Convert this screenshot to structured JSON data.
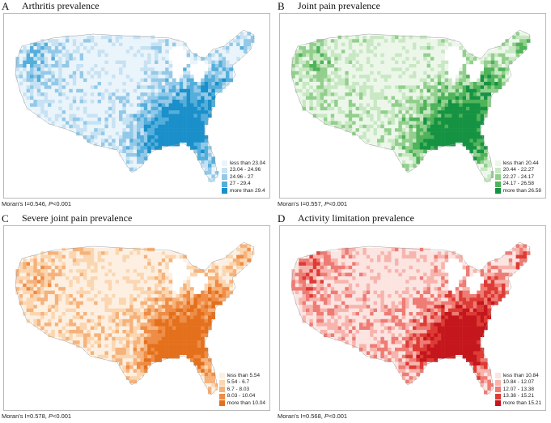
{
  "panels": [
    {
      "letter": "A",
      "title": "Arthritis prevalence",
      "stat_prefix": "Moran's I=0.546, ",
      "stat_p": "P",
      "stat_suffix": "<0.001",
      "colors": [
        "#eaf4fb",
        "#c6e2f3",
        "#93c9e8",
        "#54aedb",
        "#1a8fca"
      ],
      "legend": [
        "less than 23.04",
        "23.04 - 24.96",
        "24.96 - 27",
        "27 - 29.4",
        "more than 29.4"
      ]
    },
    {
      "letter": "B",
      "title": "Joint pain prevalence",
      "stat_prefix": "Moran's I=0.557, ",
      "stat_p": "P",
      "stat_suffix": "<0.001",
      "colors": [
        "#ecf7ea",
        "#c8e8c3",
        "#92cf8d",
        "#4fb35a",
        "#159343"
      ],
      "legend": [
        "less than 20.44",
        "20.44 - 22.27",
        "22.27 - 24.17",
        "24.17 - 26.58",
        "more than 26.58"
      ]
    },
    {
      "letter": "C",
      "title": "Severe joint pain prevalence",
      "stat_prefix": "Moran's I=0.578, ",
      "stat_p": "P",
      "stat_suffix": "<0.001",
      "colors": [
        "#fdf0e2",
        "#fbd6b0",
        "#f6b27b",
        "#ef8c45",
        "#e4701c"
      ],
      "legend": [
        "less than 5.54",
        "5.54 - 6.7",
        "6.7 - 8.03",
        "8.03 - 10.04",
        "more than 10.04"
      ]
    },
    {
      "letter": "D",
      "title": "Activity limitation prevalence",
      "stat_prefix": "Moran's I=0.568, ",
      "stat_p": "P",
      "stat_suffix": "<0.001",
      "colors": [
        "#fce4e1",
        "#f7b4ad",
        "#ee7b74",
        "#de3b35",
        "#c4161c"
      ],
      "legend": [
        "less than 10.84",
        "10.84 - 12.07",
        "12.07 - 13.38",
        "13.38 - 15.21",
        "more than 15.21"
      ]
    }
  ]
}
